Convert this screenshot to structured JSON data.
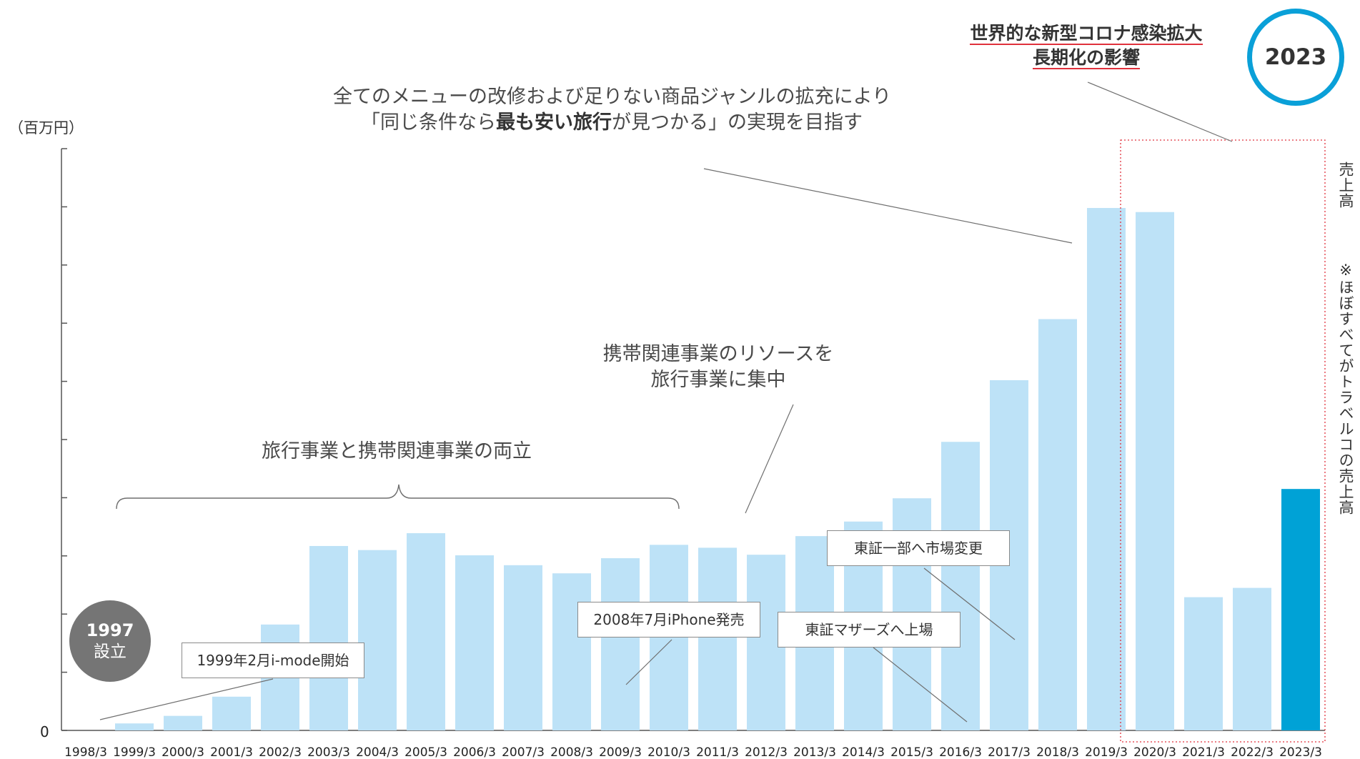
{
  "unit_label": "（百万円）",
  "zero_label": "0",
  "right_axis_label": "売上高",
  "right_note": "※ほぼすべてがトラベルコの売上高",
  "badge_1997": {
    "year": "1997",
    "label": "設立"
  },
  "badge_2023": "2023",
  "annotations": {
    "menu_line1": "全てのメニューの改修および足りない商品ジャンルの拡充により",
    "menu_line2_pre": "「同じ条件なら",
    "menu_line2_bold": "最も安い旅行",
    "menu_line2_post": "が見つかる」の実現を目指す",
    "covid_line1": "世界的な新型コロナ感染拡大",
    "covid_line2": "長期化の影響",
    "resource_line1": "携帯関連事業のリソースを",
    "resource_line2": "旅行事業に集中",
    "dual": "旅行事業と携帯関連事業の両立",
    "imode": "1999年2月i-mode開始",
    "iphone": "2008年7月iPhone発売",
    "mothers": "東証マザーズへ上場",
    "ichibu": "東証一部へ市場変更"
  },
  "colors": {
    "bar": "#bde2f7",
    "highlight": "#00a2d6",
    "covid_box": "#e0313c"
  },
  "chart_data": {
    "type": "bar",
    "categories": [
      "1998/3",
      "1999/3",
      "2000/3",
      "2001/3",
      "2002/3",
      "2003/3",
      "2004/3",
      "2005/3",
      "2006/3",
      "2007/3",
      "2008/3",
      "2009/3",
      "2010/3",
      "2011/3",
      "2012/3",
      "2013/3",
      "2014/3",
      "2015/3",
      "2016/3",
      "2017/3",
      "2018/3",
      "2019/3",
      "2020/3",
      "2021/3",
      "2022/3",
      "2023/3"
    ],
    "values": [
      0,
      1.2,
      2.5,
      5.8,
      18.2,
      31.7,
      31.0,
      33.9,
      30.1,
      28.4,
      27.0,
      29.6,
      31.9,
      31.4,
      30.2,
      33.4,
      35.9,
      39.9,
      49.6,
      60.2,
      70.7,
      89.8,
      89.1,
      22.9,
      24.5,
      41.5
    ],
    "highlight_index": 25,
    "ylim": [
      0,
      100
    ],
    "y_tick_count": 10,
    "ylabel": "（百万円）",
    "xlabel": "",
    "grid": false
  }
}
